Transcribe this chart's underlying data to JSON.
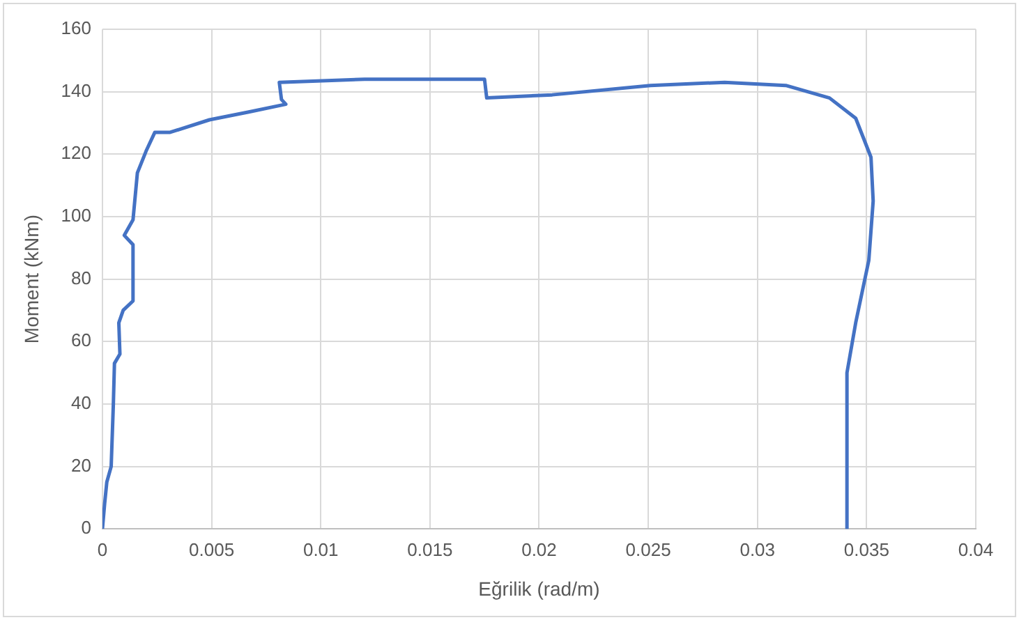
{
  "chart_data": {
    "type": "line",
    "xlabel": "Eğrilik (rad/m)",
    "ylabel": "Moment (kNm)",
    "xlim": [
      0,
      0.04
    ],
    "xticks": [
      0,
      0.005,
      0.01,
      0.015,
      0.02,
      0.025,
      0.03,
      0.035,
      0.04
    ],
    "ylim": [
      0,
      160
    ],
    "yticks": [
      0,
      20,
      40,
      60,
      80,
      100,
      120,
      140,
      160
    ],
    "grid": true,
    "legend": false,
    "marker": "none",
    "line_style": "solid",
    "series": [
      {
        "color": "#4472c4",
        "x": [
          0,
          0.0001,
          0.0002,
          0.0004,
          0.0005,
          0.00055,
          0.0008,
          0.00075,
          0.00095,
          0.0014,
          0.0014,
          0.001,
          0.0014,
          0.0016,
          0.002,
          0.0024,
          0.0031,
          0.0049,
          0.0067,
          0.0084,
          0.0082,
          0.0081,
          0.012,
          0.0175,
          0.0176,
          0.0206,
          0.0251,
          0.0285,
          0.0313,
          0.0333,
          0.0345,
          0.0352,
          0.0353,
          0.0351,
          0.0345,
          0.0341,
          0.0341
        ],
        "values": [
          0,
          8,
          15,
          20,
          40,
          53,
          56,
          66,
          70,
          73,
          91,
          94,
          99,
          114,
          121,
          127,
          127,
          131,
          133.5,
          136,
          137.5,
          143,
          144,
          144,
          138,
          139,
          142,
          143,
          142,
          138,
          131.5,
          119,
          105,
          86,
          66,
          50,
          0
        ]
      }
    ]
  }
}
